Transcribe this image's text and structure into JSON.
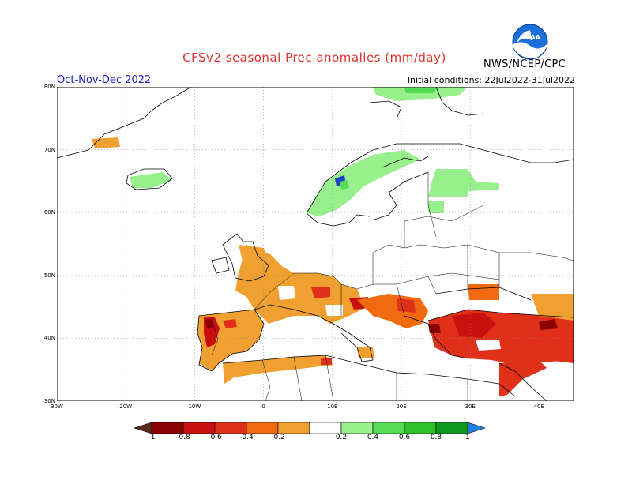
{
  "title": "CFSv2 seasonal Prec anomalies (mm/day)",
  "season": "Oct-Nov-Dec 2022",
  "initial_conditions": "Initial conditions: 22Jul2022-31Jul2022",
  "agency": "NWS/NCEP/CPC",
  "logo_text": "NOAA",
  "map": {
    "lon_ticks": [
      "30W",
      "20W",
      "10W",
      "0",
      "10E",
      "20E",
      "30E",
      "40E"
    ],
    "lat_ticks": [
      "80N",
      "70N",
      "60N",
      "50N",
      "40N",
      "30N"
    ]
  },
  "colorbar": {
    "labels": [
      "-1",
      "-0.8",
      "-0.6",
      "-0.4",
      "-0.2",
      "0.2",
      "0.4",
      "0.6",
      "0.8",
      "1"
    ],
    "colors": [
      "#5a2a1a",
      "#8b0000",
      "#c81010",
      "#e0301a",
      "#f26a10",
      "#f0a030",
      "#ffffff",
      "#98f08c",
      "#55dc55",
      "#2ebf2e",
      "#0e9a1e",
      "#1e7fdc"
    ]
  },
  "regions": {
    "dry_colors": {
      "m02": "#f0a030",
      "m04": "#f26a10",
      "m06": "#e0301a",
      "m08": "#c81010",
      "m10": "#8b0000"
    },
    "wet_colors": {
      "p02": "#98f08c",
      "p04": "#55dc55",
      "p10": "#1e40c8"
    }
  }
}
